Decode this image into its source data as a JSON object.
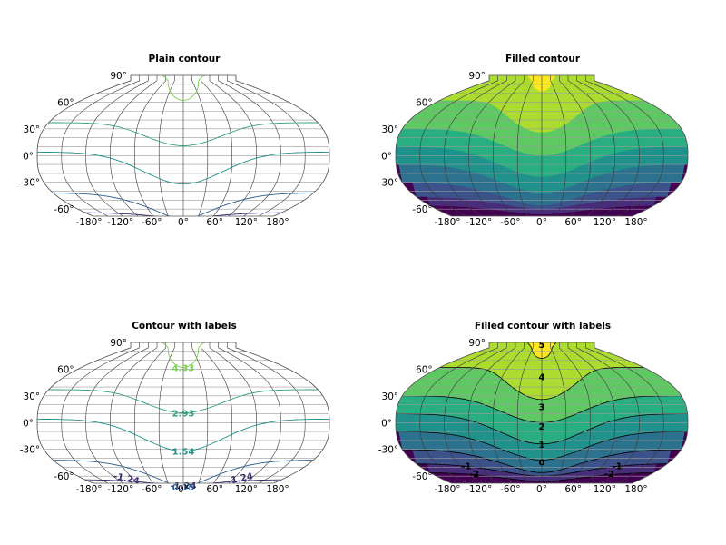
{
  "chart_data": [
    {
      "type": "contour",
      "title": "Plain contour",
      "projection": "robinson-like world projection",
      "filled": false,
      "labels": false,
      "lat_ticks": [
        "90°",
        "60°",
        "30°",
        "0°",
        "-30°",
        "-60°"
      ],
      "lon_ticks": [
        "-180°",
        "-120°",
        "-60°",
        "0°",
        "60°",
        "120°",
        "180°"
      ],
      "grid": true,
      "levels": [
        -1.24,
        0.15,
        1.54,
        2.93,
        4.33
      ],
      "level_colors": [
        "#3b2a6e",
        "#2c5d8e",
        "#21918c",
        "#2fa07a",
        "#7ad151"
      ]
    },
    {
      "type": "contourf",
      "title": "Filled contour",
      "projection": "robinson-like world projection",
      "filled": true,
      "labels": false,
      "lat_ticks": [
        "90°",
        "60°",
        "30°",
        "0°",
        "-30°",
        "-60°"
      ],
      "lon_ticks": [
        "-180°",
        "-120°",
        "-60°",
        "0°",
        "60°",
        "120°",
        "180°"
      ],
      "grid": true,
      "levels": [
        -2,
        -1,
        0,
        1,
        2,
        3,
        4,
        5,
        6
      ],
      "band_colors": [
        "#440154",
        "#472d7b",
        "#3b528b",
        "#2c728e",
        "#21918c",
        "#28ae80",
        "#5ec962",
        "#addc30",
        "#fde725"
      ]
    },
    {
      "type": "contour",
      "title": "Contour with labels",
      "projection": "robinson-like world projection",
      "filled": false,
      "labels": true,
      "lat_ticks": [
        "90°",
        "60°",
        "30°",
        "0°",
        "-30°",
        "-60°"
      ],
      "lon_ticks": [
        "-180°",
        "-120°",
        "-60°",
        "0°",
        "60°",
        "120°",
        "180°"
      ],
      "grid": true,
      "levels": [
        -1.24,
        0.15,
        1.54,
        2.93,
        4.33
      ],
      "level_labels": [
        "-1.24",
        "0.15",
        "1.54",
        "2.93",
        "4.33"
      ],
      "level_colors": [
        "#3b2a6e",
        "#2c5d8e",
        "#21918c",
        "#2fa07a",
        "#7ad151"
      ]
    },
    {
      "type": "contourf",
      "title": "Filled contour with labels",
      "projection": "robinson-like world projection",
      "filled": true,
      "labels": true,
      "lat_ticks": [
        "90°",
        "60°",
        "30°",
        "0°",
        "-30°",
        "-60°"
      ],
      "lon_ticks": [
        "-180°",
        "-120°",
        "-60°",
        "0°",
        "60°",
        "120°",
        "180°"
      ],
      "grid": true,
      "levels": [
        -2,
        -1,
        0,
        1,
        2,
        3,
        4,
        5,
        6
      ],
      "level_labels": [
        "-2",
        "-1",
        "0",
        "1",
        "2",
        "3",
        "4",
        "5"
      ],
      "band_colors": [
        "#440154",
        "#472d7b",
        "#3b528b",
        "#2c728e",
        "#21918c",
        "#28ae80",
        "#5ec962",
        "#addc30",
        "#fde725"
      ]
    }
  ]
}
